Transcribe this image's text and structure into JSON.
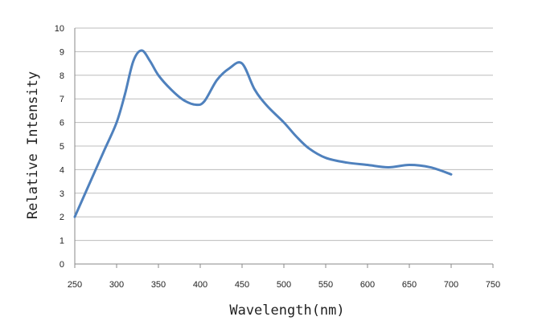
{
  "chart_data": {
    "type": "line",
    "title": "",
    "xlabel": "Wavelength(nm)",
    "ylabel": "Relative Intensity",
    "xlim": [
      250,
      750
    ],
    "ylim": [
      0,
      10
    ],
    "xticks": [
      250,
      300,
      350,
      400,
      450,
      500,
      550,
      600,
      650,
      700,
      750
    ],
    "yticks": [
      0,
      1,
      2,
      3,
      4,
      5,
      6,
      7,
      8,
      9,
      10
    ],
    "grid": true,
    "legend": "none",
    "series": [
      {
        "color": "#4f81bd",
        "x": [
          250,
          270,
          285,
          300,
          310,
          320,
          330,
          340,
          350,
          365,
          380,
          395,
          405,
          420,
          435,
          450,
          465,
          480,
          500,
          515,
          530,
          550,
          575,
          600,
          625,
          650,
          675,
          700
        ],
        "y": [
          2.0,
          3.6,
          4.8,
          6.0,
          7.2,
          8.6,
          9.05,
          8.6,
          8.0,
          7.4,
          6.95,
          6.75,
          6.9,
          7.8,
          8.3,
          8.5,
          7.4,
          6.7,
          6.0,
          5.4,
          4.9,
          4.5,
          4.3,
          4.2,
          4.1,
          4.2,
          4.1,
          3.8
        ]
      }
    ]
  }
}
